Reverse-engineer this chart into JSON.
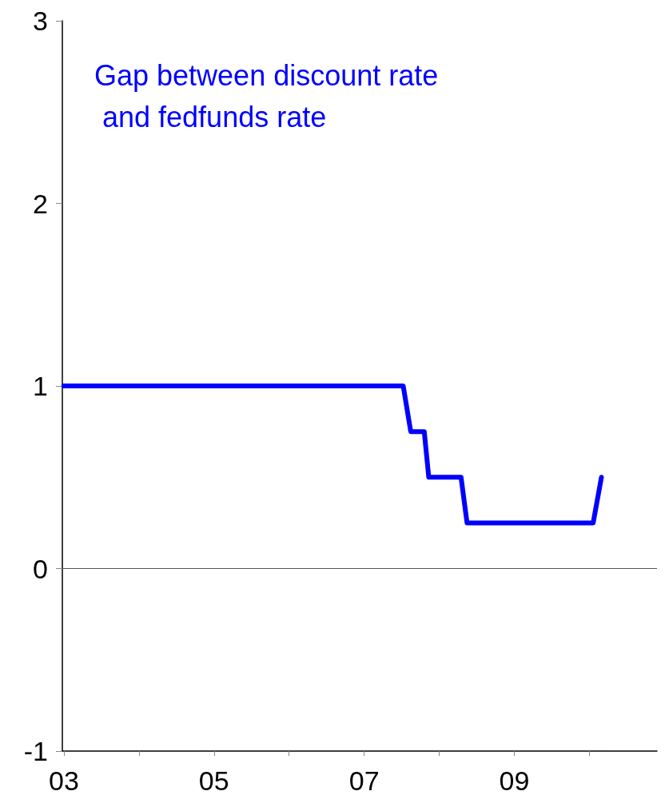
{
  "chart_data": {
    "type": "line",
    "annotations": [
      "Gap between discount rate and fedfunds rate"
    ],
    "x": [
      3.0,
      7.52,
      7.62,
      7.8,
      7.86,
      8.29,
      8.37,
      10.05,
      10.16
    ],
    "series": [
      {
        "color": "#0000ff",
        "values": [
          1,
          1,
          0.75,
          0.75,
          0.5,
          0.5,
          0.25,
          0.25,
          0.5
        ]
      }
    ],
    "xlim": [
      2.98,
      10.9
    ],
    "xticks": [
      {
        "value": 3,
        "label": "03"
      },
      {
        "value": 4,
        "label": null
      },
      {
        "value": 5,
        "label": "05"
      },
      {
        "value": 6,
        "label": null
      },
      {
        "value": 7,
        "label": "07"
      },
      {
        "value": 8,
        "label": null
      },
      {
        "value": 9,
        "label": "09"
      },
      {
        "value": 10,
        "label": null
      }
    ],
    "ylim": [
      -1,
      3
    ],
    "yticks": [
      -1,
      0,
      1,
      2,
      3
    ],
    "ref_lines": [
      {
        "axis": "y",
        "value": 0,
        "color": "#555555"
      }
    ],
    "grid": false,
    "marker": "none",
    "line_style": "solid"
  }
}
